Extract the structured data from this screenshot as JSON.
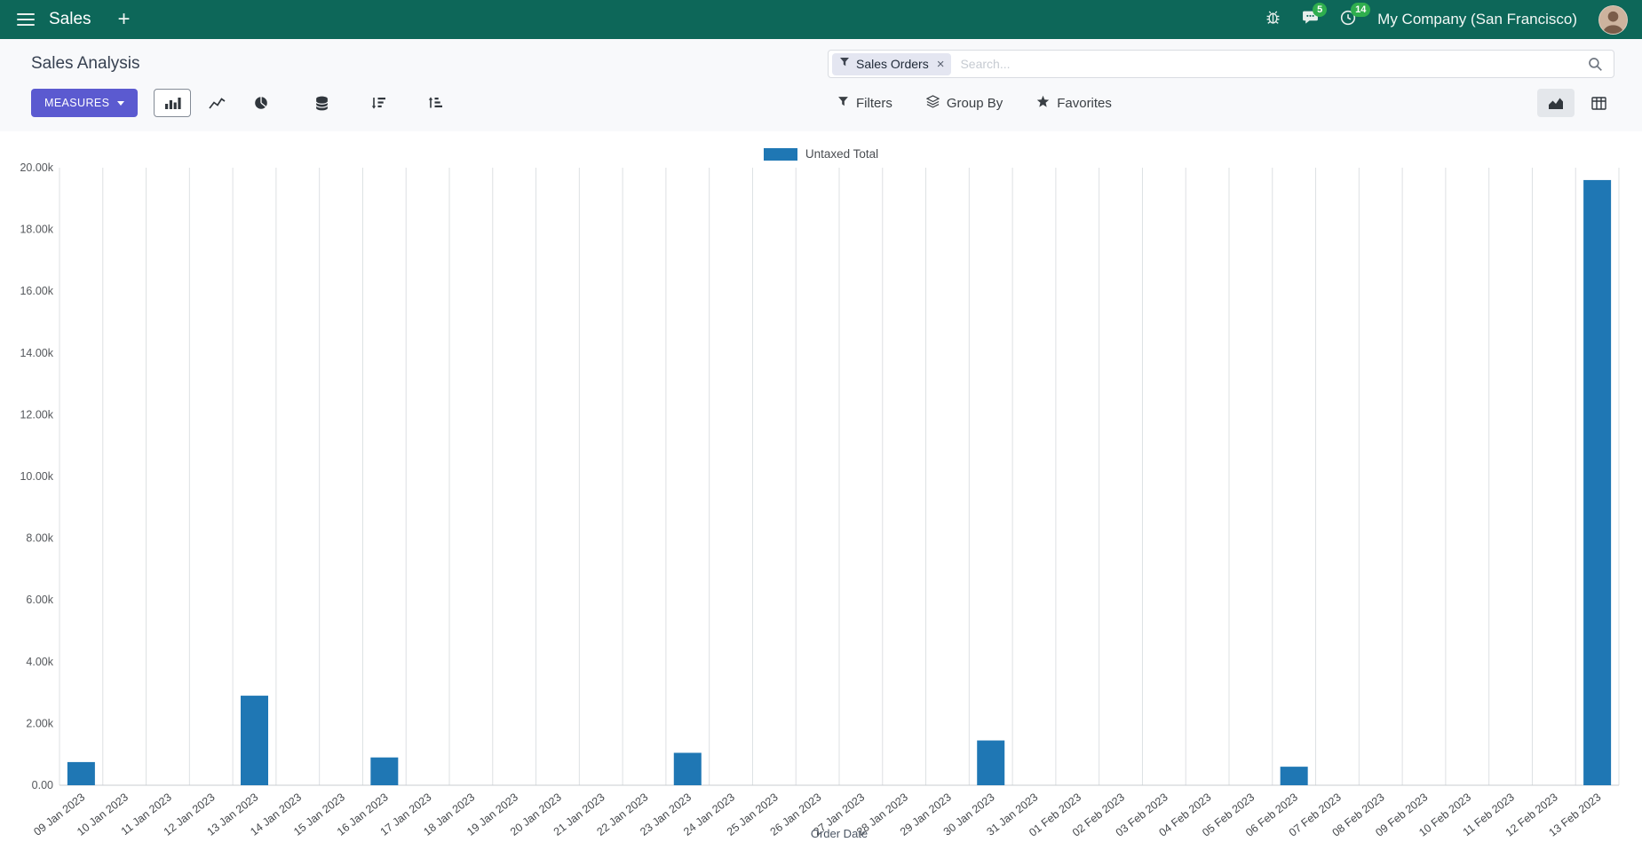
{
  "navbar": {
    "app_name": "Sales",
    "company": "My Company (San Francisco)",
    "messages_badge": "5",
    "activities_badge": "14"
  },
  "control_panel": {
    "breadcrumb": "Sales Analysis",
    "measures_label": "MEASURES",
    "filters_label": "Filters",
    "group_by_label": "Group By",
    "favorites_label": "Favorites",
    "search": {
      "facet_label": "Sales Orders",
      "facet_remove": "×",
      "placeholder": "Search..."
    }
  },
  "chart_data": {
    "type": "bar",
    "title": "",
    "xlabel": "Order Date",
    "ylabel": "",
    "ylim": [
      0,
      20000
    ],
    "y_tick_labels": [
      "0.00",
      "2.00k",
      "4.00k",
      "6.00k",
      "8.00k",
      "10.00k",
      "12.00k",
      "14.00k",
      "16.00k",
      "18.00k",
      "20.00k"
    ],
    "grid": "vertical-only",
    "legend_position": "top-center",
    "categories": [
      "09 Jan 2023",
      "10 Jan 2023",
      "11 Jan 2023",
      "12 Jan 2023",
      "13 Jan 2023",
      "14 Jan 2023",
      "15 Jan 2023",
      "16 Jan 2023",
      "17 Jan 2023",
      "18 Jan 2023",
      "19 Jan 2023",
      "20 Jan 2023",
      "21 Jan 2023",
      "22 Jan 2023",
      "23 Jan 2023",
      "24 Jan 2023",
      "25 Jan 2023",
      "26 Jan 2023",
      "27 Jan 2023",
      "28 Jan 2023",
      "29 Jan 2023",
      "30 Jan 2023",
      "31 Jan 2023",
      "01 Feb 2023",
      "02 Feb 2023",
      "03 Feb 2023",
      "04 Feb 2023",
      "05 Feb 2023",
      "06 Feb 2023",
      "07 Feb 2023",
      "08 Feb 2023",
      "09 Feb 2023",
      "10 Feb 2023",
      "11 Feb 2023",
      "12 Feb 2023",
      "13 Feb 2023"
    ],
    "series": [
      {
        "name": "Untaxed Total",
        "color": "#1f77b4",
        "values": [
          750,
          0,
          0,
          0,
          2900,
          0,
          0,
          900,
          0,
          0,
          0,
          0,
          0,
          0,
          1050,
          0,
          0,
          0,
          0,
          0,
          0,
          1450,
          0,
          0,
          0,
          0,
          0,
          0,
          600,
          0,
          0,
          0,
          0,
          0,
          0,
          19600
        ]
      }
    ]
  }
}
